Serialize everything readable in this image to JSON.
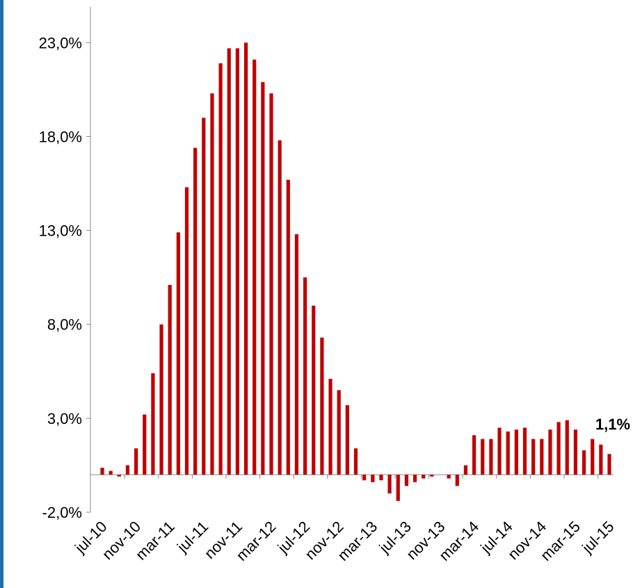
{
  "chart_data": {
    "type": "bar",
    "categories": [
      "jul-10",
      null,
      null,
      null,
      "nov-10",
      null,
      null,
      null,
      "mar-11",
      null,
      null,
      null,
      "jul-11",
      null,
      null,
      null,
      "nov-11",
      null,
      null,
      null,
      "mar-12",
      null,
      null,
      null,
      "jul-12",
      null,
      null,
      null,
      "nov-12",
      null,
      null,
      null,
      "mar-13",
      null,
      null,
      null,
      "jul-13",
      null,
      null,
      null,
      "nov-13",
      null,
      null,
      null,
      "mar-14",
      null,
      null,
      null,
      "jul-14",
      null,
      null,
      null,
      "nov-14",
      null,
      null,
      null,
      "mar-15",
      null,
      null,
      null,
      "jul-15"
    ],
    "values": [
      0.37,
      0.2,
      -0.1,
      0.5,
      1.4,
      3.2,
      5.4,
      8.0,
      10.1,
      12.9,
      15.3,
      17.4,
      19.0,
      20.3,
      21.9,
      22.7,
      22.7,
      23.0,
      22.1,
      20.9,
      20.3,
      17.8,
      15.7,
      12.8,
      10.5,
      9.0,
      7.3,
      5.1,
      4.5,
      3.7,
      1.4,
      -0.3,
      -0.4,
      -0.3,
      -1.0,
      -1.4,
      -0.6,
      -0.4,
      -0.2,
      -0.1,
      0.0,
      -0.2,
      -0.6,
      0.5,
      2.1,
      1.9,
      1.9,
      2.5,
      2.3,
      2.4,
      2.5,
      1.9,
      1.9,
      2.4,
      2.8,
      2.9,
      2.4,
      1.3,
      1.9,
      1.6,
      1.1
    ],
    "value_labels": [
      null,
      null,
      null,
      null,
      null,
      null,
      null,
      null,
      null,
      null,
      null,
      null,
      null,
      null,
      null,
      null,
      null,
      null,
      null,
      null,
      null,
      null,
      null,
      null,
      null,
      null,
      null,
      null,
      null,
      null,
      null,
      null,
      null,
      null,
      null,
      null,
      null,
      null,
      null,
      null,
      null,
      null,
      null,
      null,
      null,
      null,
      null,
      null,
      null,
      null,
      null,
      null,
      null,
      null,
      null,
      null,
      null,
      null,
      null,
      null,
      "1,1%"
    ],
    "color": "#c00000",
    "ylim": [
      -2,
      24.9
    ],
    "yticks": [
      {
        "value": -2,
        "label": "-2,0%"
      },
      {
        "value": 3,
        "label": "3,0%"
      },
      {
        "value": 8,
        "label": "8,0%"
      },
      {
        "value": 13,
        "label": "13,0%"
      },
      {
        "value": 18,
        "label": "18,0%"
      },
      {
        "value": 23,
        "label": "23,0%"
      }
    ],
    "grid": false
  }
}
